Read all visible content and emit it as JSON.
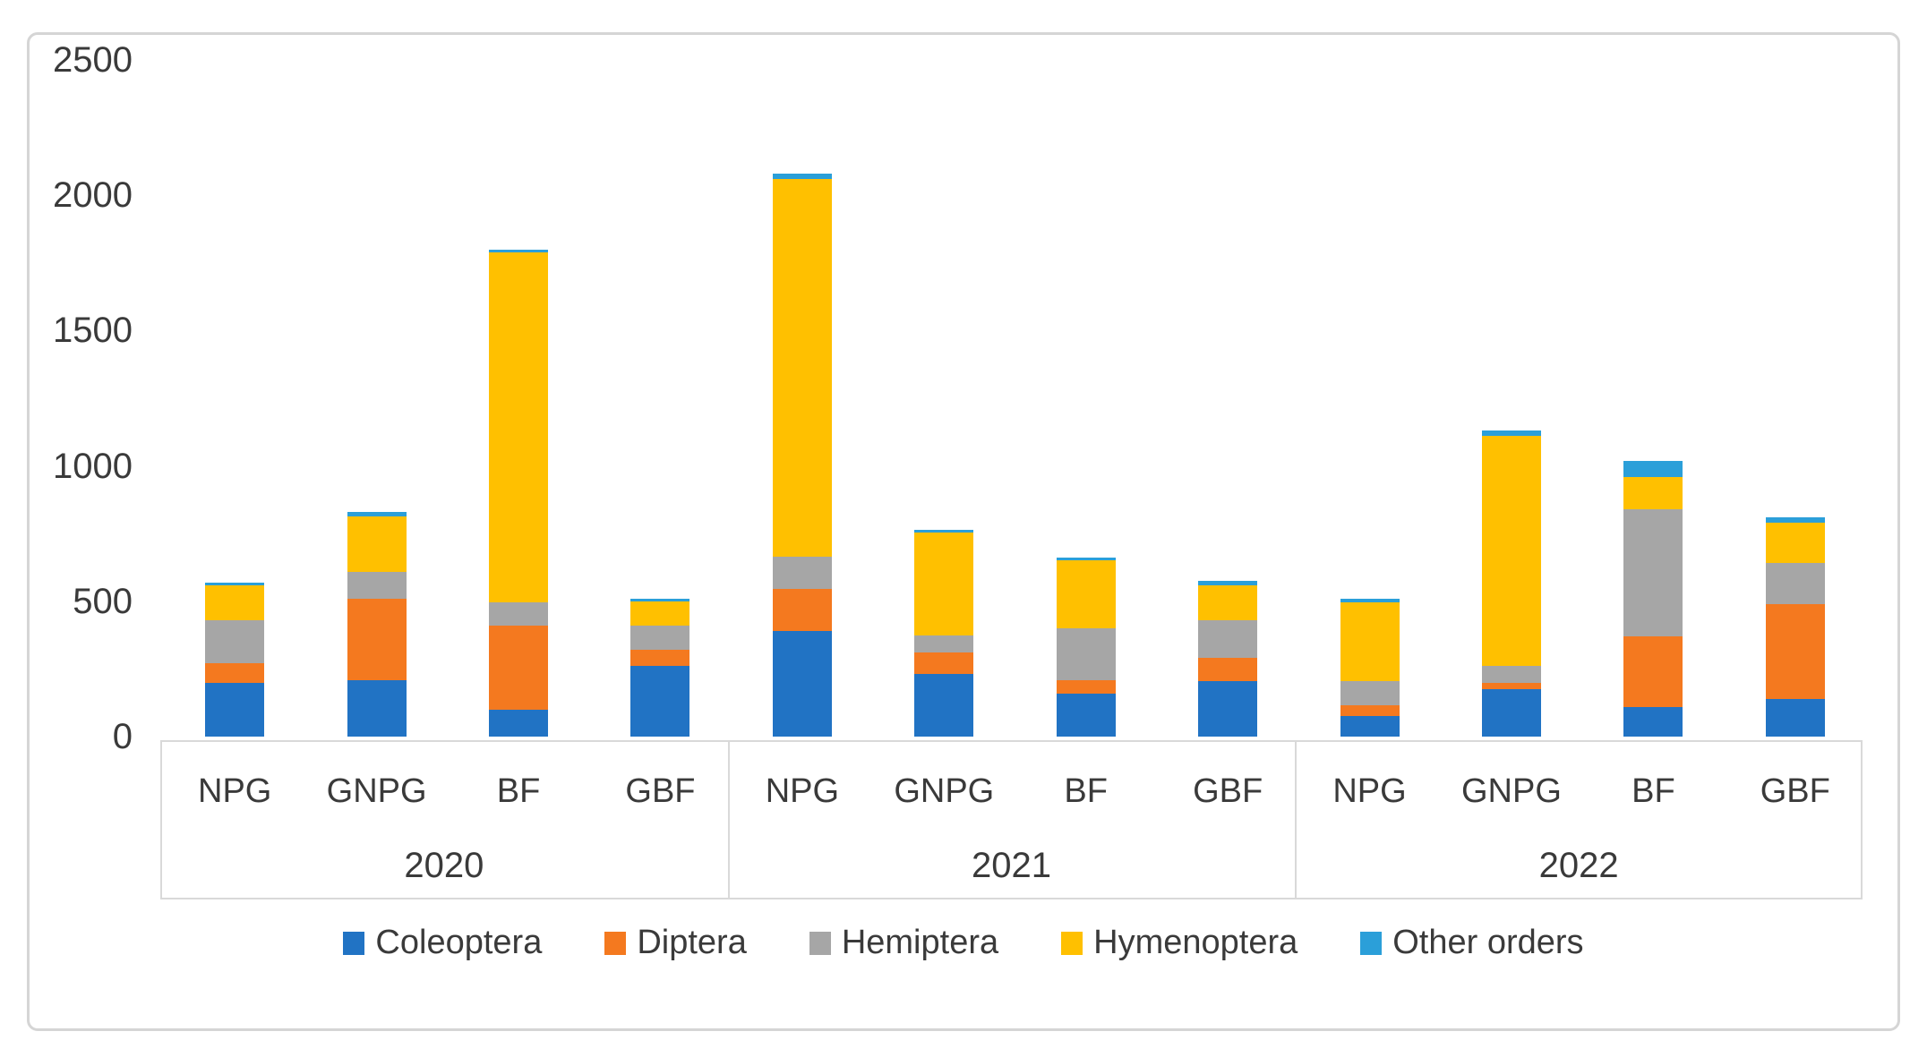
{
  "figure": {
    "background": "#ffffff",
    "border_color": "#d5d5d5",
    "text_color": "#3a3a3a",
    "axis_line_color": "#d9d9d9"
  },
  "chart_data": {
    "type": "bar",
    "subtype": "stacked",
    "title": "",
    "xlabel": "",
    "ylabel": "",
    "ylim": [
      0,
      2500
    ],
    "yticks": [
      0,
      500,
      1000,
      1500,
      2000,
      2500
    ],
    "grid": false,
    "legend_position": "bottom",
    "group_labels": [
      "2020",
      "2021",
      "2022"
    ],
    "categories": [
      "NPG",
      "GNPG",
      "BF",
      "GBF"
    ],
    "bar_order_note": "values arrays run 2020 NPG,GNPG,BF,GBF then 2021 NPG,GNPG,BF,GBF then 2022 NPG,GNPG,BF,GBF",
    "series": [
      {
        "name": "Coleoptera",
        "color": "#2173c4",
        "values": [
          200,
          210,
          100,
          260,
          390,
          230,
          160,
          205,
          75,
          175,
          110,
          140
        ]
      },
      {
        "name": "Diptera",
        "color": "#f4791f",
        "values": [
          70,
          300,
          310,
          60,
          155,
          80,
          50,
          85,
          40,
          25,
          260,
          350
        ]
      },
      {
        "name": "Hemiptera",
        "color": "#a6a6a6",
        "values": [
          160,
          100,
          85,
          90,
          120,
          65,
          190,
          140,
          90,
          60,
          470,
          150
        ]
      },
      {
        "name": "Hymenoptera",
        "color": "#ffc000",
        "values": [
          130,
          205,
          1295,
          90,
          1395,
          380,
          250,
          130,
          290,
          850,
          120,
          150
        ]
      },
      {
        "name": "Other orders",
        "color": "#2b9fd9",
        "values": [
          10,
          15,
          10,
          10,
          20,
          10,
          10,
          15,
          15,
          20,
          60,
          20
        ]
      }
    ],
    "totals": [
      570,
      830,
      1800,
      510,
      2080,
      765,
      660,
      575,
      510,
      1130,
      1020,
      810
    ]
  }
}
